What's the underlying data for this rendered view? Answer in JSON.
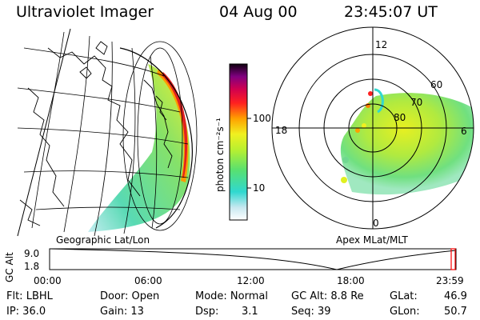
{
  "header": {
    "title": "Ultraviolet Imager",
    "date": "04 Aug 00",
    "time": "23:45:07 UT"
  },
  "colorbar": {
    "unit_label": "photon cm⁻²s⁻¹",
    "ticks": [
      "100",
      "10"
    ]
  },
  "geo_panel": {
    "label": "Geographic Lat/Lon"
  },
  "polar_panel": {
    "label": "Apex MLat/MLT",
    "mlt_labels": {
      "top": "12",
      "left": "18",
      "right": "6",
      "bottom": "0"
    },
    "lat_labels": [
      "60",
      "70",
      "80"
    ]
  },
  "orbit_plot": {
    "y_axis_label": "GC Alt",
    "y_ticks": [
      "9.0",
      "1.8"
    ],
    "x_ticks": [
      "00:00",
      "06:00",
      "12:00",
      "18:00",
      "23:59"
    ]
  },
  "info": {
    "flt": "Flt: LBHL",
    "ip": "IP: 36.0",
    "door": "Door: Open",
    "gain": "Gain: 13",
    "mode": "Mode: Normal",
    "dsp": "Dsp:",
    "dsp_value": "3.1",
    "gcalt": "GC Alt: 8.8 Re",
    "seq": "Seq: 39",
    "glat": "GLat:",
    "glat_value": "46.9",
    "glon": "GLon:",
    "glon_value": "50.7"
  }
}
